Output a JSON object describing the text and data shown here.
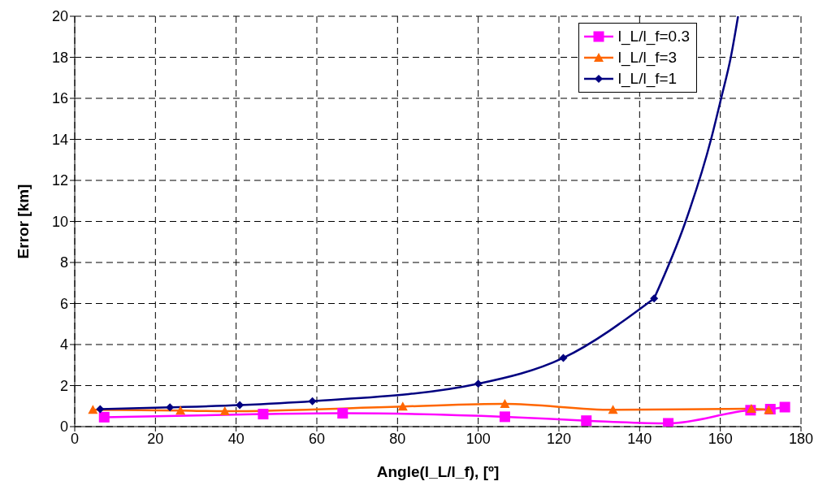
{
  "chart_data": {
    "type": "line",
    "xlabel": "Angle(l_L/l_f), [º]",
    "ylabel": "Error [km]",
    "xlim": [
      0,
      180
    ],
    "xticks": [
      0,
      20,
      40,
      60,
      80,
      100,
      120,
      140,
      160,
      180
    ],
    "ylim": [
      0,
      20
    ],
    "yticks": [
      0,
      2,
      4,
      6,
      8,
      10,
      12,
      14,
      16,
      18,
      20
    ],
    "grid": true,
    "legend": "top right",
    "line_style": "solid",
    "series": [
      {
        "name": "l_L/l_f=0.3",
        "color": "#ff00ff",
        "marker": "square",
        "x": [
          7.3,
          46.7,
          66.4,
          106.6,
          126.8,
          147.1,
          167.5,
          172.4,
          176
        ],
        "values": [
          0.46,
          0.61,
          0.65,
          0.48,
          0.29,
          0.16,
          0.8,
          0.85,
          0.95
        ]
      },
      {
        "name": "l_L/l_f=3",
        "color": "#ff6600",
        "marker": "triangle",
        "x": [
          4.5,
          26.2,
          37.2,
          81.3,
          106.6,
          133.4,
          167.7,
          172
        ],
        "values": [
          0.82,
          0.78,
          0.75,
          0.98,
          1.11,
          0.82,
          0.87,
          0.81
        ]
      },
      {
        "name": "l_L/l_f=1",
        "color": "#000080",
        "marker": "diamond",
        "x": [
          6.3,
          23.6,
          40.9,
          58.9,
          100,
          121.1,
          143.6
        ],
        "values": [
          0.85,
          0.94,
          1.05,
          1.24,
          2.09,
          3.35,
          6.25
        ]
      },
      {
        "color": "#000080",
        "marker": "none",
        "x": [
          143.6,
          151.4,
          157.7,
          160.2,
          162.6,
          164.4
        ],
        "values": [
          6.25,
          10,
          14,
          16,
          18,
          20
        ]
      }
    ]
  }
}
